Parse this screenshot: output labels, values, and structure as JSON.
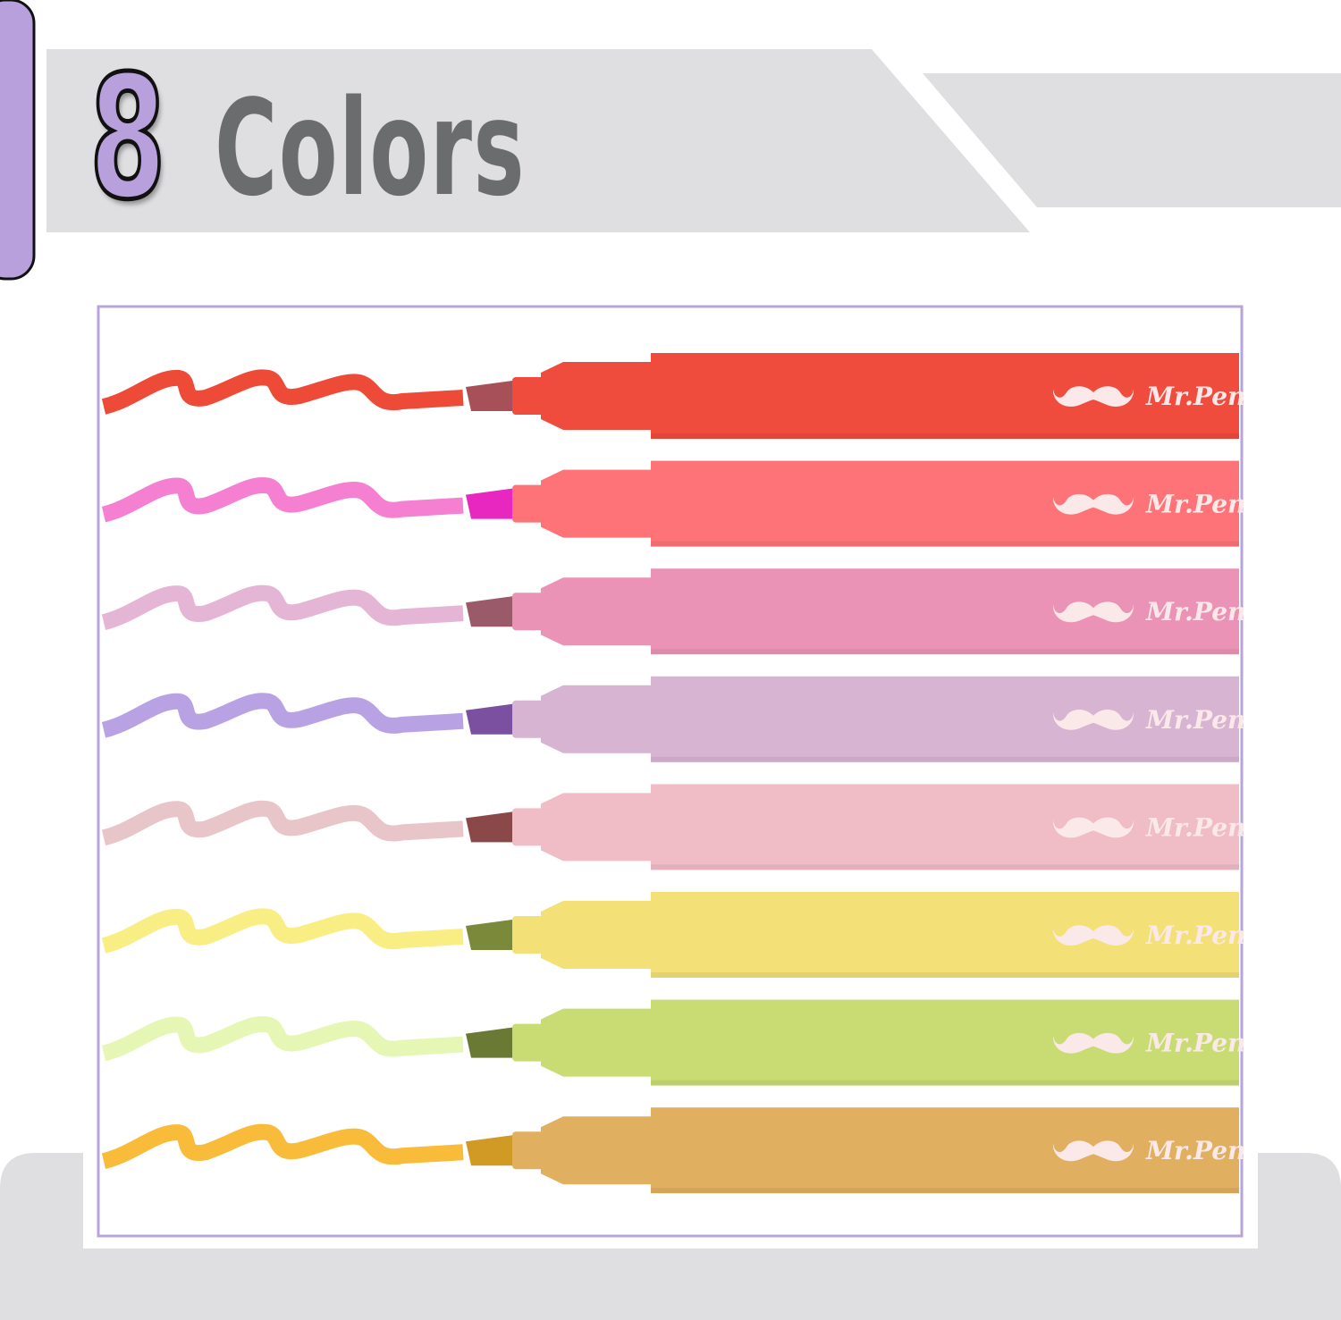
{
  "header": {
    "count": "8",
    "label": "Colors"
  },
  "colors": {
    "accent_purple": "#b7a0dc",
    "banner_gray": "#dfdfe1",
    "title_gray": "#6b6c6e",
    "frame_purple": "#b8a4dc"
  },
  "pens": [
    {
      "brand": "Mr.Pen",
      "body": "#ef4c3e",
      "swatch": "#ee4a38",
      "tip": "#a85058"
    },
    {
      "brand": "Mr.Pen",
      "body": "#fd7378",
      "swatch": "#f57fd0",
      "tip": "#e826c0"
    },
    {
      "brand": "Mr.Pen",
      "body": "#eb93b6",
      "swatch": "#e5b5d6",
      "tip": "#9a5a6a"
    },
    {
      "brand": "Mr.Pen",
      "body": "#d8b4d3",
      "swatch": "#b9a2e4",
      "tip": "#7c50a0"
    },
    {
      "brand": "Mr.Pen",
      "body": "#f0bcc6",
      "swatch": "#e7c5c9",
      "tip": "#8a4848"
    },
    {
      "brand": "Mr.Pen",
      "body": "#f3e077",
      "swatch": "#f9ee84",
      "tip": "#7a8a3a"
    },
    {
      "brand": "Mr.Pen",
      "body": "#c9dc73",
      "swatch": "#e6f7b5",
      "tip": "#6a7a35"
    },
    {
      "brand": "Mr.Pen",
      "body": "#e0b060",
      "swatch": "#f9bb3a",
      "tip": "#d09a25"
    }
  ]
}
